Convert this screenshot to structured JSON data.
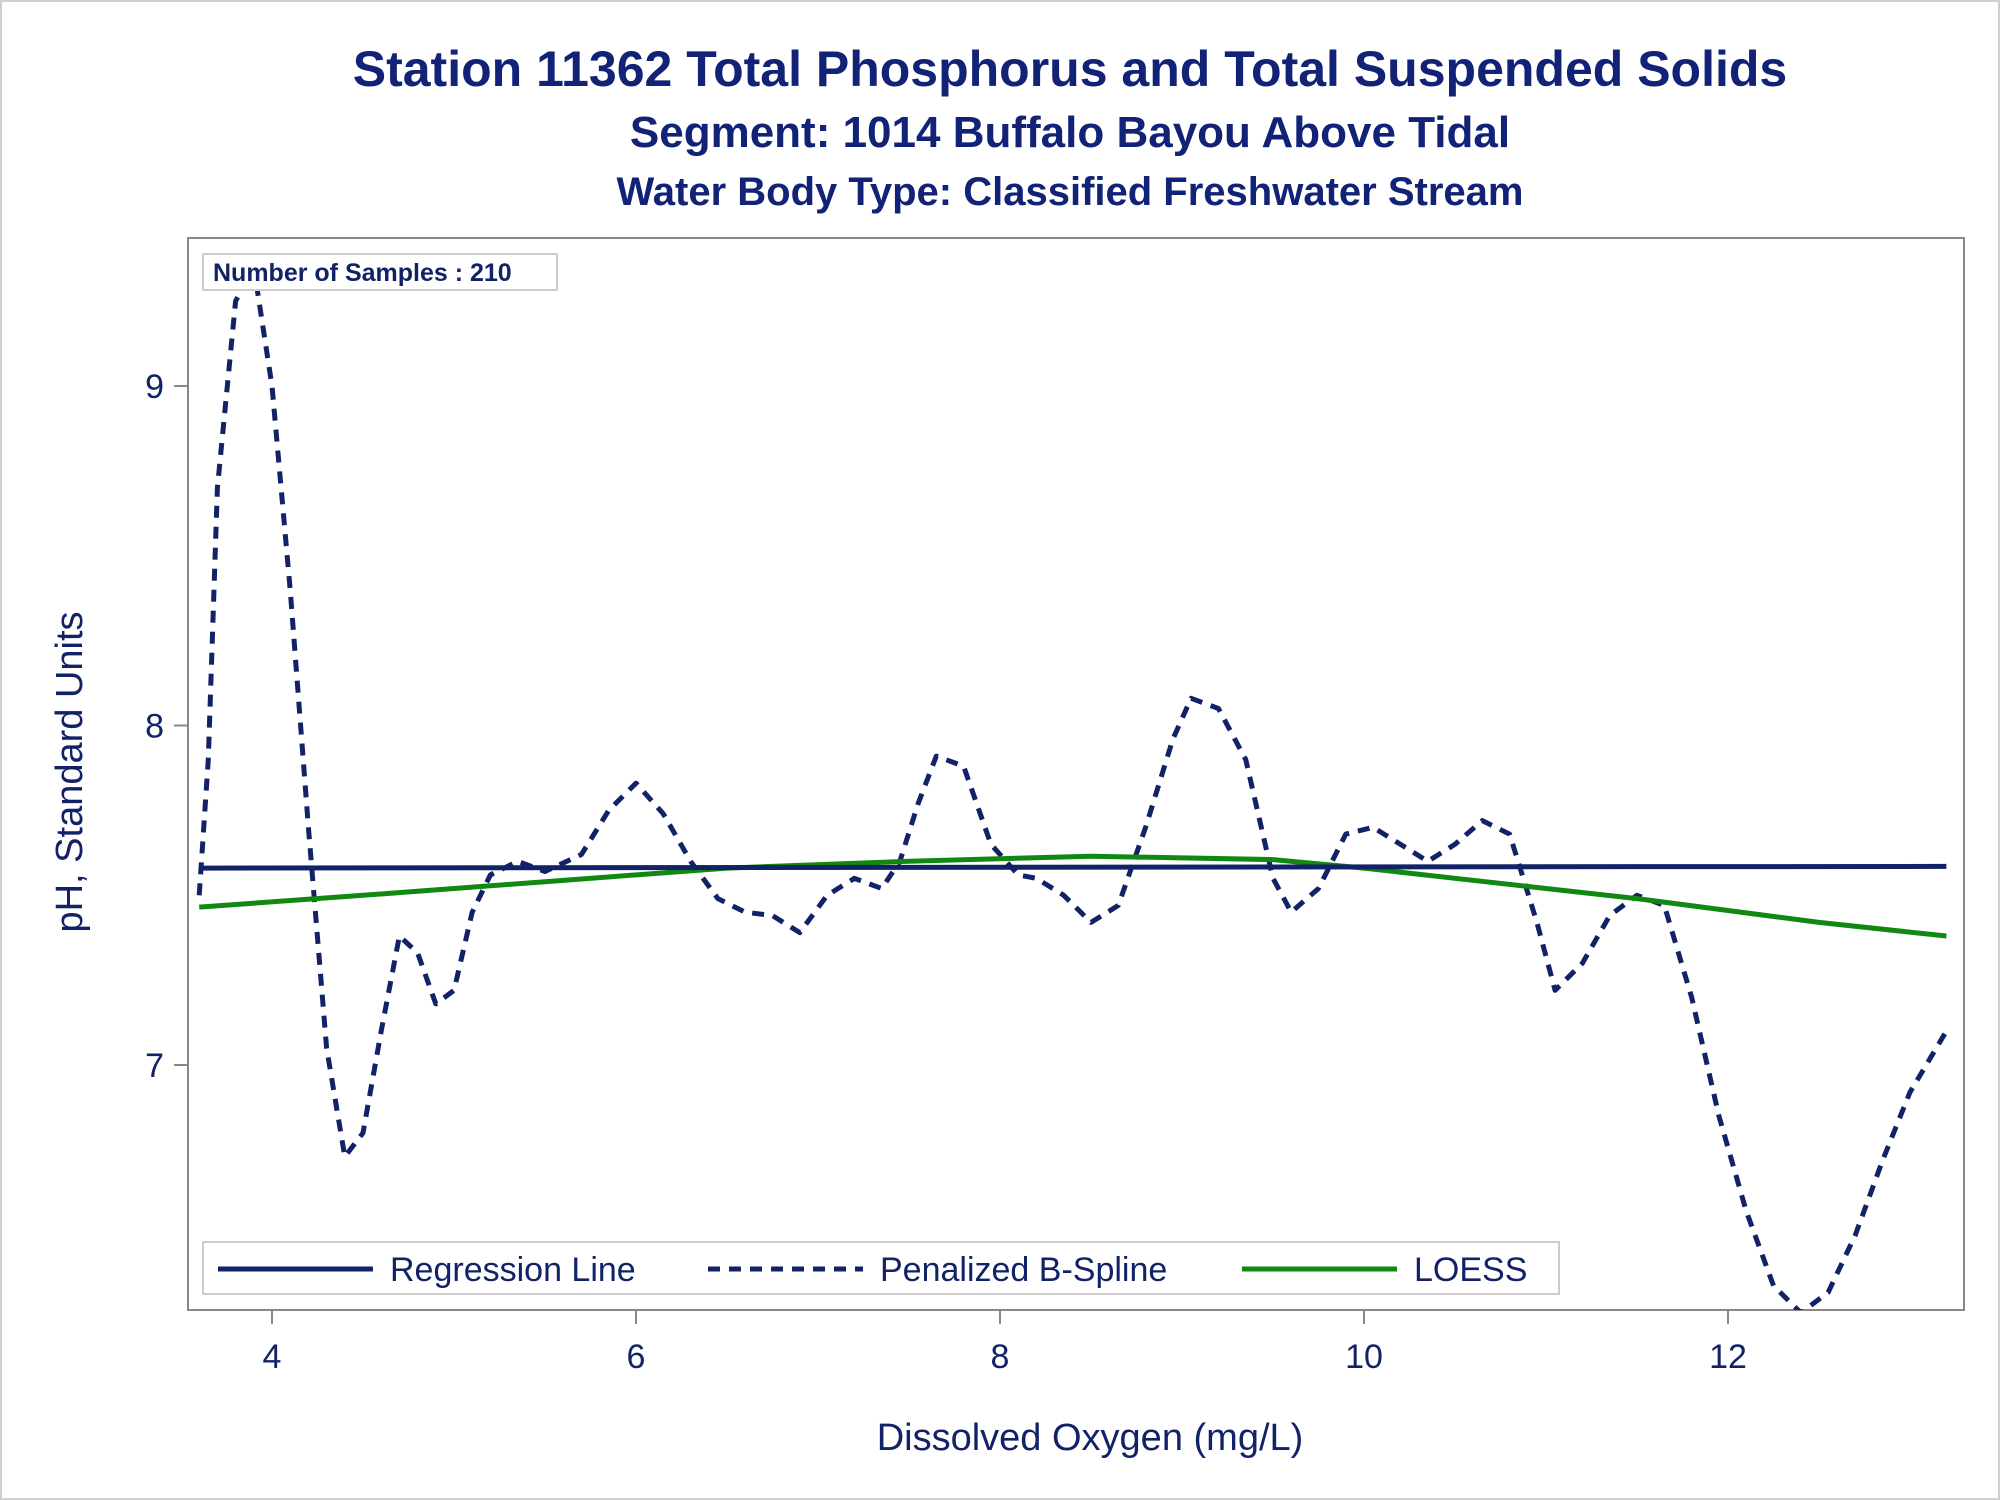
{
  "chart_data": {
    "type": "line",
    "title": "Station 11362  Total Phosphorus and Total Suspended Solids",
    "subtitle": "Segment: 1014  Buffalo Bayou Above Tidal",
    "subtitle2": "Water Body Type: Classified Freshwater Stream",
    "xlabel": "Dissolved Oxygen (mg/L)",
    "ylabel": "pH, Standard Units",
    "xlim": [
      3.6,
      13.2
    ],
    "ylim": [
      6.3,
      9.45
    ],
    "xticks": [
      4,
      6,
      8,
      10,
      12
    ],
    "yticks": [
      7,
      8,
      9
    ],
    "grid": false,
    "legend_position": "bottom-inside",
    "annotation": "Number of Samples : 210",
    "series": [
      {
        "name": "Regression Line",
        "style": "solid",
        "color": "#112266",
        "x": [
          3.6,
          13.2
        ],
        "y": [
          7.58,
          7.585
        ]
      },
      {
        "name": "Penalized B-Spline",
        "style": "dashed",
        "color": "#112266",
        "x": [
          3.6,
          3.65,
          3.7,
          3.8,
          3.9,
          4.0,
          4.1,
          4.2,
          4.3,
          4.4,
          4.5,
          4.6,
          4.7,
          4.8,
          4.9,
          5.0,
          5.1,
          5.2,
          5.35,
          5.5,
          5.7,
          5.85,
          6.0,
          6.15,
          6.3,
          6.45,
          6.6,
          6.75,
          6.9,
          7.05,
          7.2,
          7.35,
          7.45,
          7.55,
          7.65,
          7.8,
          7.95,
          8.1,
          8.2,
          8.35,
          8.5,
          8.65,
          8.8,
          8.95,
          9.05,
          9.2,
          9.35,
          9.5,
          9.6,
          9.75,
          9.9,
          10.05,
          10.2,
          10.35,
          10.5,
          10.65,
          10.8,
          10.95,
          11.05,
          11.2,
          11.35,
          11.5,
          11.65,
          11.8,
          11.95,
          12.1,
          12.25,
          12.4,
          12.55,
          12.7,
          12.85,
          13.0,
          13.2
        ],
        "y": [
          7.5,
          7.9,
          8.7,
          9.25,
          9.35,
          9.0,
          8.4,
          7.7,
          7.05,
          6.73,
          6.8,
          7.1,
          7.38,
          7.33,
          7.18,
          7.22,
          7.45,
          7.56,
          7.6,
          7.57,
          7.62,
          7.75,
          7.83,
          7.74,
          7.6,
          7.49,
          7.45,
          7.44,
          7.39,
          7.5,
          7.55,
          7.52,
          7.6,
          7.77,
          7.91,
          7.88,
          7.65,
          7.56,
          7.55,
          7.5,
          7.42,
          7.47,
          7.7,
          7.96,
          8.08,
          8.05,
          7.9,
          7.55,
          7.45,
          7.52,
          7.68,
          7.7,
          7.65,
          7.6,
          7.65,
          7.72,
          7.68,
          7.42,
          7.22,
          7.3,
          7.44,
          7.5,
          7.47,
          7.2,
          6.85,
          6.57,
          6.35,
          6.27,
          6.33,
          6.5,
          6.72,
          6.92,
          7.1
        ]
      },
      {
        "name": "LOESS",
        "style": "solid",
        "color": "#118811",
        "x": [
          3.6,
          4.5,
          5.5,
          6.5,
          7.5,
          8.5,
          9.5,
          10.0,
          10.5,
          11.0,
          11.5,
          12.0,
          12.5,
          13.2
        ],
        "y": [
          7.465,
          7.5,
          7.54,
          7.58,
          7.6,
          7.615,
          7.605,
          7.58,
          7.55,
          7.52,
          7.49,
          7.455,
          7.42,
          7.38
        ]
      }
    ]
  }
}
